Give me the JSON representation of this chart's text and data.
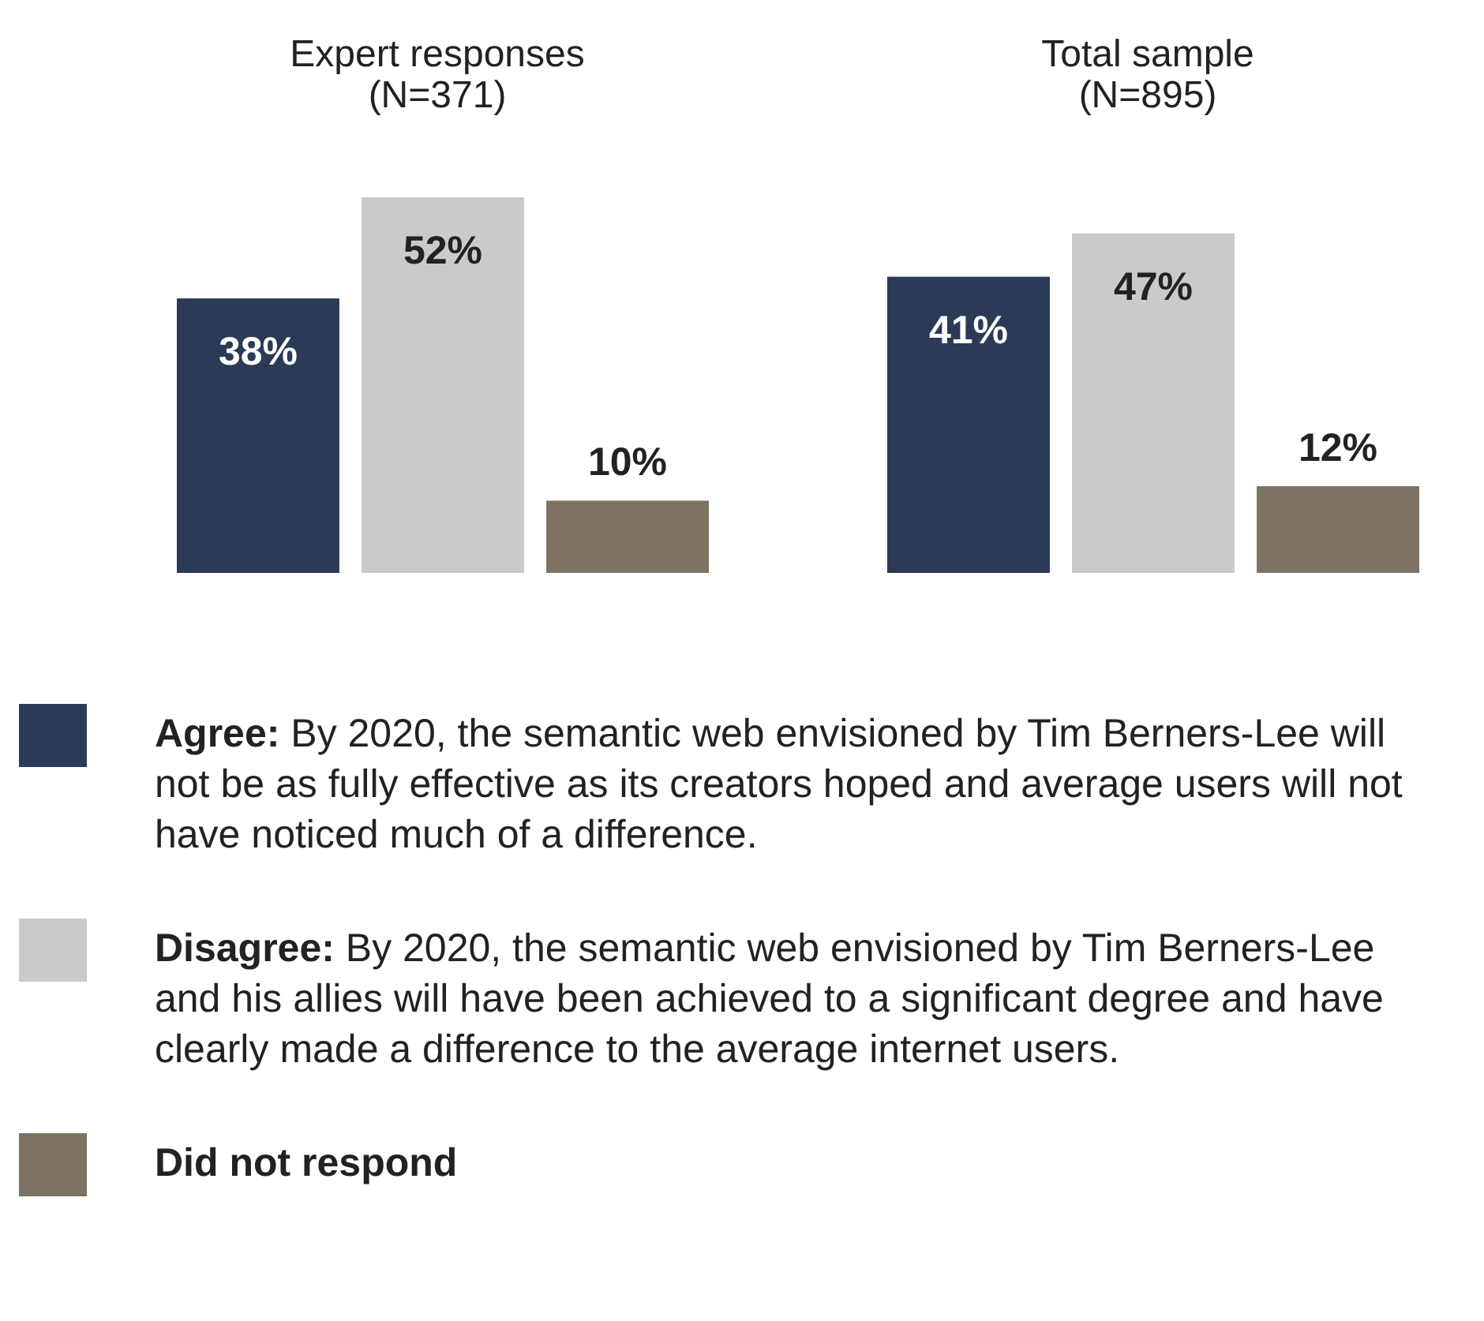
{
  "chart_data": [
    {
      "type": "bar",
      "title": "Expert responses",
      "subtitle": "(N=371)",
      "categories": [
        null
      ],
      "legend": "bottom",
      "series": [
        {
          "name": "Agree: By 2020, the semantic web envisioned by Tim Berners-Lee will not be as fully effective as its creators hoped and average users will not have noticed much of a difference.",
          "color": "#2b3a56",
          "values": [
            38
          ],
          "value_labels": [
            "38%"
          ]
        },
        {
          "name": "Disagree: By 2020, the semantic web envisioned by Tim Berners-Lee and his allies will have been achieved to a significant degree and have clearly made a difference to the average internet users.",
          "color": "#cacaca",
          "values": [
            52
          ],
          "value_labels": [
            "52%"
          ]
        },
        {
          "name": "Did not respond",
          "color": "#7e7262",
          "values": [
            10
          ],
          "value_labels": [
            "10%"
          ]
        }
      ]
    },
    {
      "type": "bar",
      "title": "Total sample",
      "subtitle": "(N=895)",
      "categories": [
        null
      ],
      "series": [
        {
          "color": "#2b3a56",
          "values": [
            41
          ],
          "value_labels": [
            "41%"
          ]
        },
        {
          "color": "#cacaca",
          "values": [
            47
          ],
          "value_labels": [
            "47%"
          ]
        },
        {
          "color": "#7e7262",
          "values": [
            12
          ],
          "value_labels": [
            "12%"
          ]
        }
      ]
    }
  ]
}
